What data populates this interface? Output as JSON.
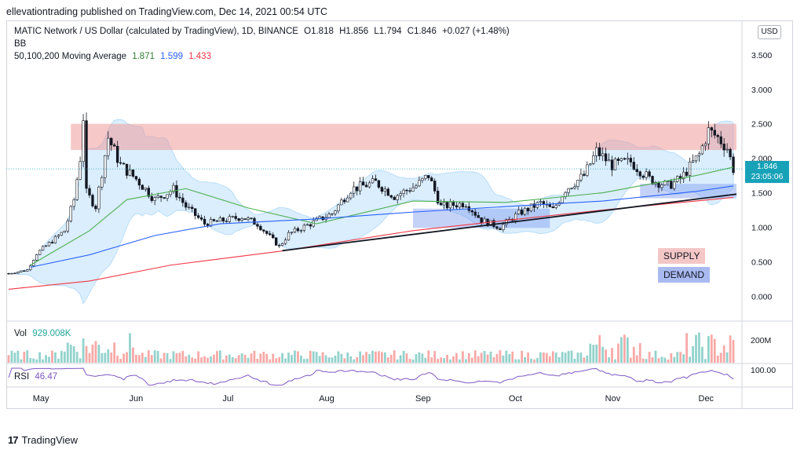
{
  "publisher_line": "ellevationtrading published on TradingView.com, Dec 14, 2021 00:54 UTC",
  "legend": {
    "symbol": "MATIC Network / US Dollar (calculated by TradingView), 1D, BINANCE",
    "o": "O1.818",
    "h": "H1.856",
    "l": "L1.794",
    "c": "C1.846",
    "change": "+0.027 (+1.48%)",
    "bb": "BB",
    "ma_label": "50,100,200 Moving Average",
    "ma50": "1.871",
    "ma100": "1.599",
    "ma200": "1.433"
  },
  "currency_button": "USD",
  "price_tag": {
    "price": "1.846",
    "countdown": "23:05:06"
  },
  "zones": {
    "supply_label": "SUPPLY",
    "demand_label": "DEMAND"
  },
  "volume_pane": {
    "label": "Vol",
    "value": "929.008K",
    "axis_label": "200M"
  },
  "rsi_pane": {
    "label": "RSI",
    "value": "46.47",
    "axis_label": "100.00"
  },
  "brand": "TradingView",
  "colors": {
    "up": "#26a69a",
    "down": "#ef5350",
    "ma50": "#4caf50",
    "ma100": "#2962ff",
    "ma200": "#f23645",
    "bb_fill": "#2196f3",
    "supply": "#ef9a9a",
    "demand": "#7e9cf0",
    "rsi": "#7e57c2"
  },
  "chart_data": {
    "type": "candlestick",
    "title": "MATIC Network / US Dollar (calculated by TradingView), 1D, BINANCE",
    "y_axis_ticks": [
      "3.500",
      "3.000",
      "2.500",
      "2.000",
      "1.500",
      "1.000",
      "0.500",
      "0.000"
    ],
    "ylim": [
      -0.35,
      4.0
    ],
    "x_axis_ticks": [
      "May",
      "Jun",
      "Jul",
      "Aug",
      "Sep",
      "Oct",
      "Nov",
      "Dec"
    ],
    "price_path": [
      [
        "2021-04-24",
        0.33
      ],
      [
        "2021-04-30",
        0.38
      ],
      [
        "2021-05-03",
        0.62
      ],
      [
        "2021-05-08",
        0.8
      ],
      [
        "2021-05-12",
        0.95
      ],
      [
        "2021-05-15",
        1.4
      ],
      [
        "2021-05-17",
        2.0
      ],
      [
        "2021-05-18",
        2.6
      ],
      [
        "2021-05-19",
        1.5
      ],
      [
        "2021-05-22",
        1.3
      ],
      [
        "2021-05-26",
        2.3
      ],
      [
        "2021-05-30",
        1.9
      ],
      [
        "2021-06-04",
        1.7
      ],
      [
        "2021-06-10",
        1.4
      ],
      [
        "2021-06-16",
        1.55
      ],
      [
        "2021-06-20",
        1.3
      ],
      [
        "2021-06-26",
        1.05
      ],
      [
        "2021-07-02",
        1.1
      ],
      [
        "2021-07-08",
        1.15
      ],
      [
        "2021-07-13",
        1.05
      ],
      [
        "2021-07-20",
        0.72
      ],
      [
        "2021-07-23",
        0.9
      ],
      [
        "2021-07-30",
        1.05
      ],
      [
        "2021-08-06",
        1.2
      ],
      [
        "2021-08-12",
        1.55
      ],
      [
        "2021-08-20",
        1.65
      ],
      [
        "2021-08-26",
        1.45
      ],
      [
        "2021-09-02",
        1.6
      ],
      [
        "2021-09-06",
        1.75
      ],
      [
        "2021-09-10",
        1.3
      ],
      [
        "2021-09-18",
        1.35
      ],
      [
        "2021-09-23",
        1.1
      ],
      [
        "2021-09-29",
        1.0
      ],
      [
        "2021-10-05",
        1.2
      ],
      [
        "2021-10-12",
        1.35
      ],
      [
        "2021-10-16",
        1.25
      ],
      [
        "2021-10-20",
        1.55
      ],
      [
        "2021-10-26",
        1.75
      ],
      [
        "2021-10-30",
        2.1
      ],
      [
        "2021-11-04",
        1.9
      ],
      [
        "2021-11-10",
        1.95
      ],
      [
        "2021-11-16",
        1.7
      ],
      [
        "2021-11-22",
        1.6
      ],
      [
        "2021-11-26",
        1.7
      ],
      [
        "2021-12-02",
        2.05
      ],
      [
        "2021-12-05",
        2.4
      ],
      [
        "2021-12-08",
        2.3
      ],
      [
        "2021-12-11",
        2.15
      ],
      [
        "2021-12-13",
        1.846
      ]
    ],
    "supply_zone": {
      "x": [
        "2021-05-14",
        "2021-12-14"
      ],
      "y": [
        2.12,
        2.5
      ]
    },
    "demand_zone": {
      "x": [
        "2021-09-01",
        "2021-10-15"
      ],
      "y": [
        0.99,
        1.27
      ]
    },
    "demand_zone_2": {
      "x": [
        "2021-11-13",
        "2021-12-14"
      ],
      "y": [
        1.42,
        1.63
      ]
    },
    "trendline": {
      "x": [
        "2021-07-21",
        "2021-12-14"
      ],
      "y": [
        0.66,
        1.48
      ]
    },
    "series": [
      {
        "name": "50",
        "values": [
          [
            "2021-05-01",
            0.45
          ],
          [
            "2021-05-20",
            0.95
          ],
          [
            "2021-06-01",
            1.4
          ],
          [
            "2021-06-20",
            1.56
          ],
          [
            "2021-07-10",
            1.28
          ],
          [
            "2021-08-01",
            1.05
          ],
          [
            "2021-09-01",
            1.38
          ],
          [
            "2021-10-01",
            1.36
          ],
          [
            "2021-11-01",
            1.5
          ],
          [
            "2021-12-01",
            1.75
          ],
          [
            "2021-12-13",
            1.871
          ]
        ]
      },
      {
        "name": "100",
        "values": [
          [
            "2021-05-01",
            0.42
          ],
          [
            "2021-05-20",
            0.6
          ],
          [
            "2021-06-10",
            0.88
          ],
          [
            "2021-07-01",
            1.05
          ],
          [
            "2021-08-01",
            1.12
          ],
          [
            "2021-09-01",
            1.22
          ],
          [
            "2021-10-01",
            1.3
          ],
          [
            "2021-11-01",
            1.38
          ],
          [
            "2021-12-01",
            1.52
          ],
          [
            "2021-12-13",
            1.599
          ]
        ]
      },
      {
        "name": "200",
        "values": [
          [
            "2021-04-24",
            0.1
          ],
          [
            "2021-05-20",
            0.22
          ],
          [
            "2021-06-15",
            0.45
          ],
          [
            "2021-07-20",
            0.65
          ],
          [
            "2021-09-01",
            0.95
          ],
          [
            "2021-10-01",
            1.1
          ],
          [
            "2021-11-01",
            1.25
          ],
          [
            "2021-12-13",
            1.433
          ]
        ]
      }
    ],
    "volume_pane": {
      "series_name": "Vol",
      "axis_ticks": [
        "200M"
      ]
    },
    "rsi_pane": {
      "series_name": "RSI",
      "axis_ticks": [
        "100.00"
      ],
      "last": 46.47
    }
  }
}
